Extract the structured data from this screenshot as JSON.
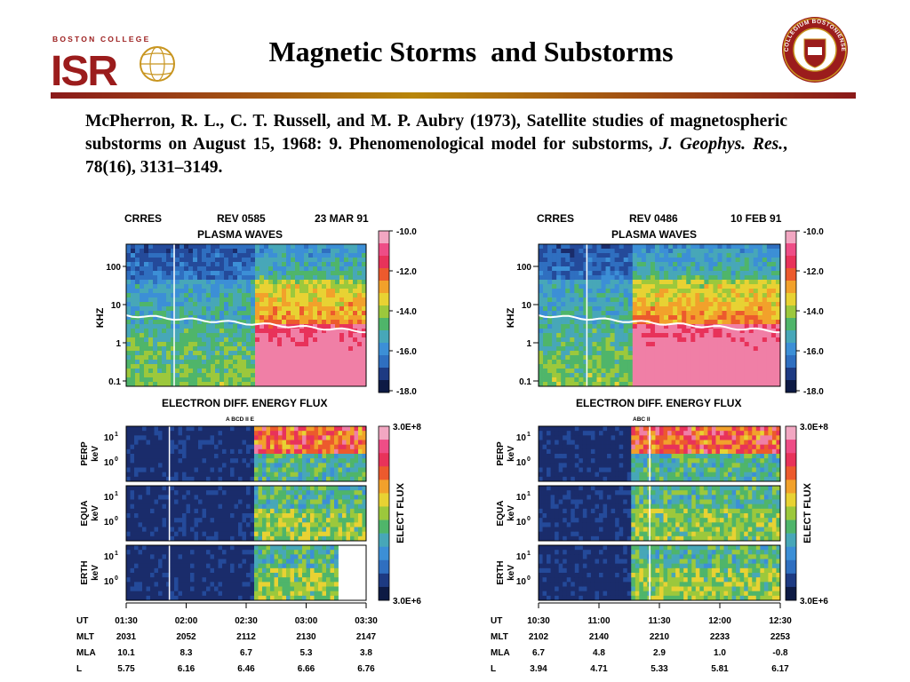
{
  "header": {
    "logo_left_top": "BOSTON COLLEGE",
    "logo_left_main": "ISR",
    "title": "Magnetic Storms  and Substorms",
    "logo_right_text": "COLLEGIUM BOSTONIENSE"
  },
  "citation": {
    "text_plain": "McPherron, R. L., C. T. Russell, and M. P. Aubry (1973), Satellite studies of magnetospheric substorms on August 15, 1968: 9. Phenomenological model for substorms, ",
    "journal": "J. Geophys. Res.",
    "text_tail": ", 78(16), 3131–3149."
  },
  "chart_data": [
    {
      "type": "heatmap",
      "mission": "CRRES",
      "rev": "REV 0585",
      "date": "23 MAR 91",
      "wave_title": "PLASMA WAVES",
      "wave_ylabel": "KHZ",
      "wave_yticks": [
        "100",
        "10",
        "1",
        "0.1"
      ],
      "wave_colorbar_ticks": [
        "-10.0",
        "-12.0",
        "-14.0",
        "-16.0",
        "-18.0"
      ],
      "flux_title": "ELECTRON DIFF. ENERGY FLUX",
      "onset_markers": "A  BCD  II E",
      "flux_panels": [
        {
          "label": "PERP",
          "unit": "keV"
        },
        {
          "label": "EQUA",
          "unit": "keV"
        },
        {
          "label": "ERTH",
          "unit": "keV"
        }
      ],
      "flux_yticks": [
        "10",
        "10"
      ],
      "flux_ytick_exps": [
        "1",
        "0"
      ],
      "flux_colorbar_top": "3.0E+8",
      "flux_colorbar_bottom": "3.0E+6",
      "flux_colorbar_label": "ELECT FLUX",
      "row_labels": [
        "UT",
        "MLT",
        "MLA",
        "L"
      ],
      "ut": [
        "01:30",
        "02:00",
        "02:30",
        "03:00",
        "03:30"
      ],
      "mlt": [
        "2031",
        "2052",
        "2112",
        "2130",
        "2147"
      ],
      "mla": [
        "10.1",
        "8.3",
        "6.7",
        "5.3",
        "3.8"
      ],
      "l": [
        "5.75",
        "6.16",
        "6.46",
        "6.66",
        "6.76"
      ]
    },
    {
      "type": "heatmap",
      "mission": "CRRES",
      "rev": "REV 0486",
      "date": "10 FEB 91",
      "wave_title": "PLASMA WAVES",
      "wave_ylabel": "KHZ",
      "wave_yticks": [
        "100",
        "10",
        "1",
        "0.1"
      ],
      "wave_colorbar_ticks": [
        "-10.0",
        "-12.0",
        "-14.0",
        "-16.0",
        "-18.0"
      ],
      "flux_title": "ELECTRON DIFF. ENERGY FLUX",
      "onset_markers": "ABC II",
      "flux_panels": [
        {
          "label": "PERP",
          "unit": "keV"
        },
        {
          "label": "EQUA",
          "unit": "keV"
        },
        {
          "label": "ERTH",
          "unit": "keV"
        }
      ],
      "flux_yticks": [
        "10",
        "10"
      ],
      "flux_ytick_exps": [
        "1",
        "0"
      ],
      "flux_colorbar_top": "3.0E+8",
      "flux_colorbar_bottom": "3.0E+6",
      "flux_colorbar_label": "ELECT FLUX",
      "row_labels": [
        "UT",
        "MLT",
        "MLA",
        "L"
      ],
      "ut": [
        "10:30",
        "11:00",
        "11:30",
        "12:00",
        "12:30"
      ],
      "mlt": [
        "2102",
        "2140",
        "2210",
        "2233",
        "2253"
      ],
      "mla": [
        "6.7",
        "4.8",
        "2.9",
        "1.0",
        "-0.8"
      ],
      "l": [
        "3.94",
        "4.71",
        "5.33",
        "5.81",
        "6.17"
      ]
    }
  ],
  "colors": {
    "rule_dark": "#8b1a1a",
    "rule_gold": "#b8860b",
    "logo_red": "#9b1c1c",
    "logo_gold": "#c8951f"
  }
}
